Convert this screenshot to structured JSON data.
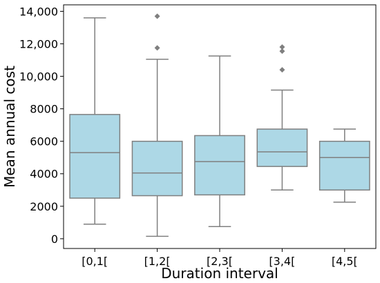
{
  "chart_data": {
    "type": "box",
    "title": "",
    "xlabel": "Duration interval",
    "ylabel": "Mean annual cost",
    "categories": [
      "[0,1[",
      "[1,2[",
      "[2,3[",
      "[3,4[",
      "[4,5["
    ],
    "ylim": [
      -600,
      14400
    ],
    "yticks": [
      0,
      2000,
      4000,
      6000,
      8000,
      10000,
      12000,
      14000
    ],
    "ytick_labels": [
      "0",
      "2000",
      "4000",
      "6000",
      "8000",
      "10,000",
      "12,000",
      "14,000"
    ],
    "boxes": [
      {
        "category": "[0,1[",
        "whisker_low": 900,
        "q1": 2500,
        "median": 5300,
        "q3": 7650,
        "whisker_high": 13600,
        "outliers": []
      },
      {
        "category": "[1,2[",
        "whisker_low": 150,
        "q1": 2650,
        "median": 4050,
        "q3": 6000,
        "whisker_high": 11050,
        "outliers": [
          11750,
          13700
        ]
      },
      {
        "category": "[2,3[",
        "whisker_low": 750,
        "q1": 2700,
        "median": 4750,
        "q3": 6350,
        "whisker_high": 11250,
        "outliers": []
      },
      {
        "category": "[3,4[",
        "whisker_low": 3000,
        "q1": 4450,
        "median": 5350,
        "q3": 6750,
        "whisker_high": 9150,
        "outliers": [
          10400,
          11550,
          11800
        ]
      },
      {
        "category": "[4,5[",
        "whisker_low": 2250,
        "q1": 3000,
        "median": 5000,
        "q3": 6000,
        "whisker_high": 6750,
        "outliers": []
      }
    ],
    "box_color": "#add8e6",
    "line_color": "#7f7f7f",
    "outlier_color": "#7f7f7f",
    "grid": false,
    "legend": "none"
  }
}
